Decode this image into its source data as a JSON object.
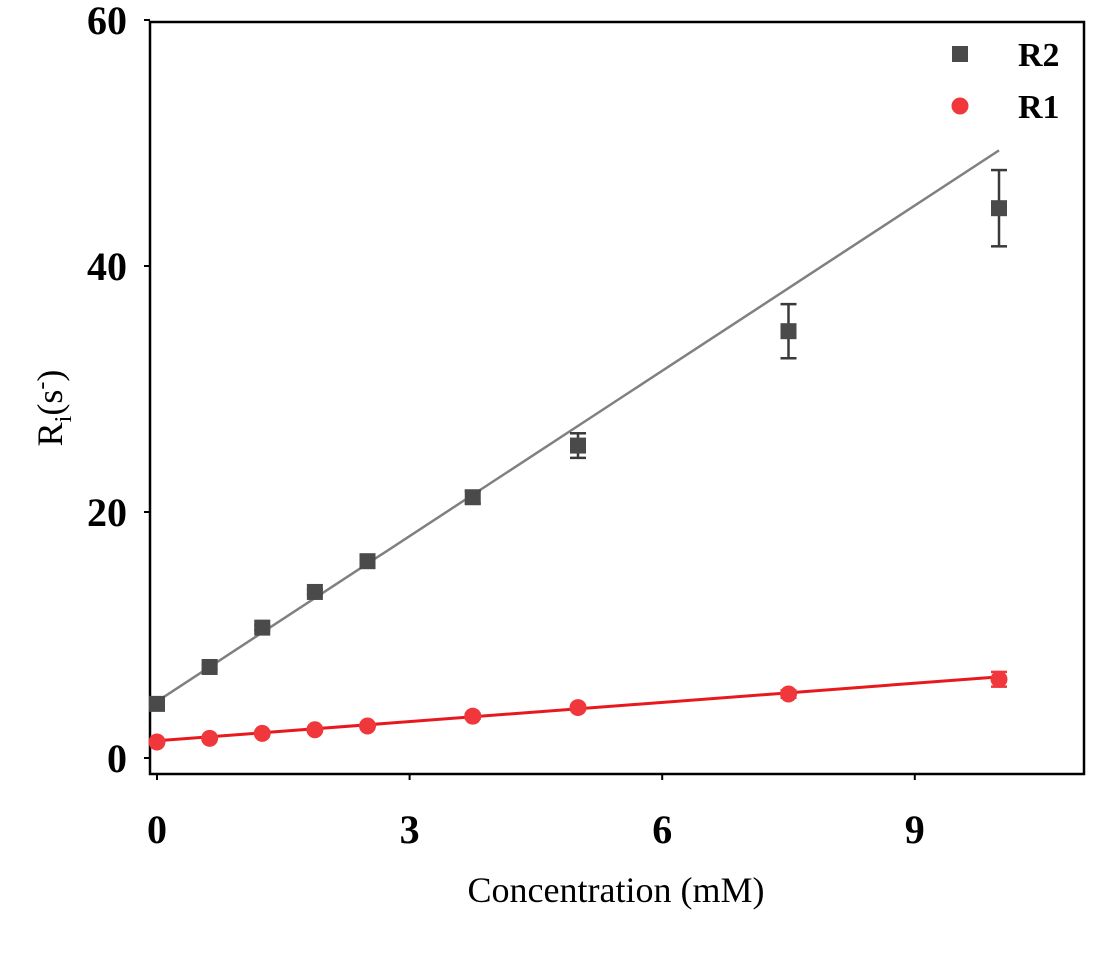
{
  "chart_data": {
    "type": "scatter",
    "title": "",
    "xlabel": "Concentration (mM)",
    "ylabel": {
      "main": "R",
      "sub": "i",
      "rest": "(s",
      "sup": "-",
      "close": ")"
    },
    "xlim": [
      0,
      11.1
    ],
    "ylim": [
      0,
      61
    ],
    "xticks": [
      0,
      3,
      6,
      9
    ],
    "xtick_labels": [
      "0",
      "3",
      "6",
      "9"
    ],
    "yticks": [
      0,
      20,
      40,
      60
    ],
    "ytick_labels": [
      "0",
      "20",
      "40",
      "60"
    ],
    "grid": false,
    "legend_position": "top-right",
    "series": [
      {
        "name": "R2",
        "marker": "square",
        "color": "#4a4a4a",
        "line_color": "#808080",
        "x": [
          0,
          0.625,
          1.25,
          1.875,
          2.5,
          3.75,
          5,
          7.5,
          10
        ],
        "y": [
          4.4,
          7.4,
          10.6,
          13.5,
          16,
          21.2,
          25.4,
          34.7,
          44.7
        ],
        "err": [
          0.2,
          0.2,
          0.2,
          0.2,
          0.2,
          0.5,
          1.0,
          2.2,
          3.1
        ],
        "fit": {
          "x": [
            0,
            10
          ],
          "y": [
            4.6,
            49.4
          ]
        }
      },
      {
        "name": "R1",
        "marker": "circle",
        "color": "#f0383c",
        "line_color": "#e8191e",
        "x": [
          0,
          0.625,
          1.25,
          1.875,
          2.5,
          3.75,
          5,
          7.5,
          10
        ],
        "y": [
          1.3,
          1.6,
          2.0,
          2.3,
          2.6,
          3.4,
          4.1,
          5.2,
          6.4
        ],
        "err": [
          0.1,
          0.1,
          0.1,
          0.1,
          0.1,
          0.2,
          0.2,
          0.3,
          0.6
        ],
        "fit": {
          "x": [
            0,
            10
          ],
          "y": [
            1.4,
            6.6
          ]
        }
      }
    ]
  }
}
